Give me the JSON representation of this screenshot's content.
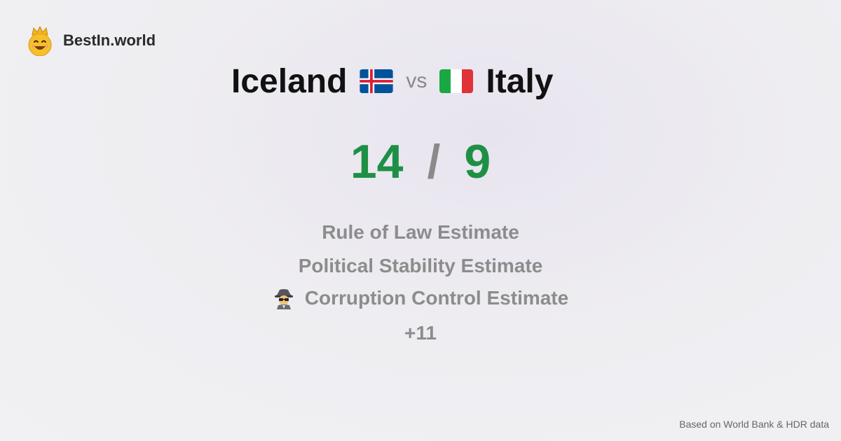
{
  "brand": {
    "name": "BestIn.world",
    "icon": "smiling-king-icon"
  },
  "comparison": {
    "left_country": "Iceland",
    "left_flag_icon": "iceland-flag-icon",
    "vs": "vs",
    "right_country": "Italy",
    "right_flag_icon": "italy-flag-icon"
  },
  "score": {
    "left": "14",
    "separator": "/",
    "right": "9",
    "color": "#1e9045"
  },
  "metrics": [
    {
      "label": "Rule of Law Estimate"
    },
    {
      "label": "Political Stability Estimate"
    },
    {
      "label": "Corruption Control Estimate",
      "icon": "spy-icon"
    }
  ],
  "more": "+11",
  "footer": "Based on World Bank & HDR data"
}
